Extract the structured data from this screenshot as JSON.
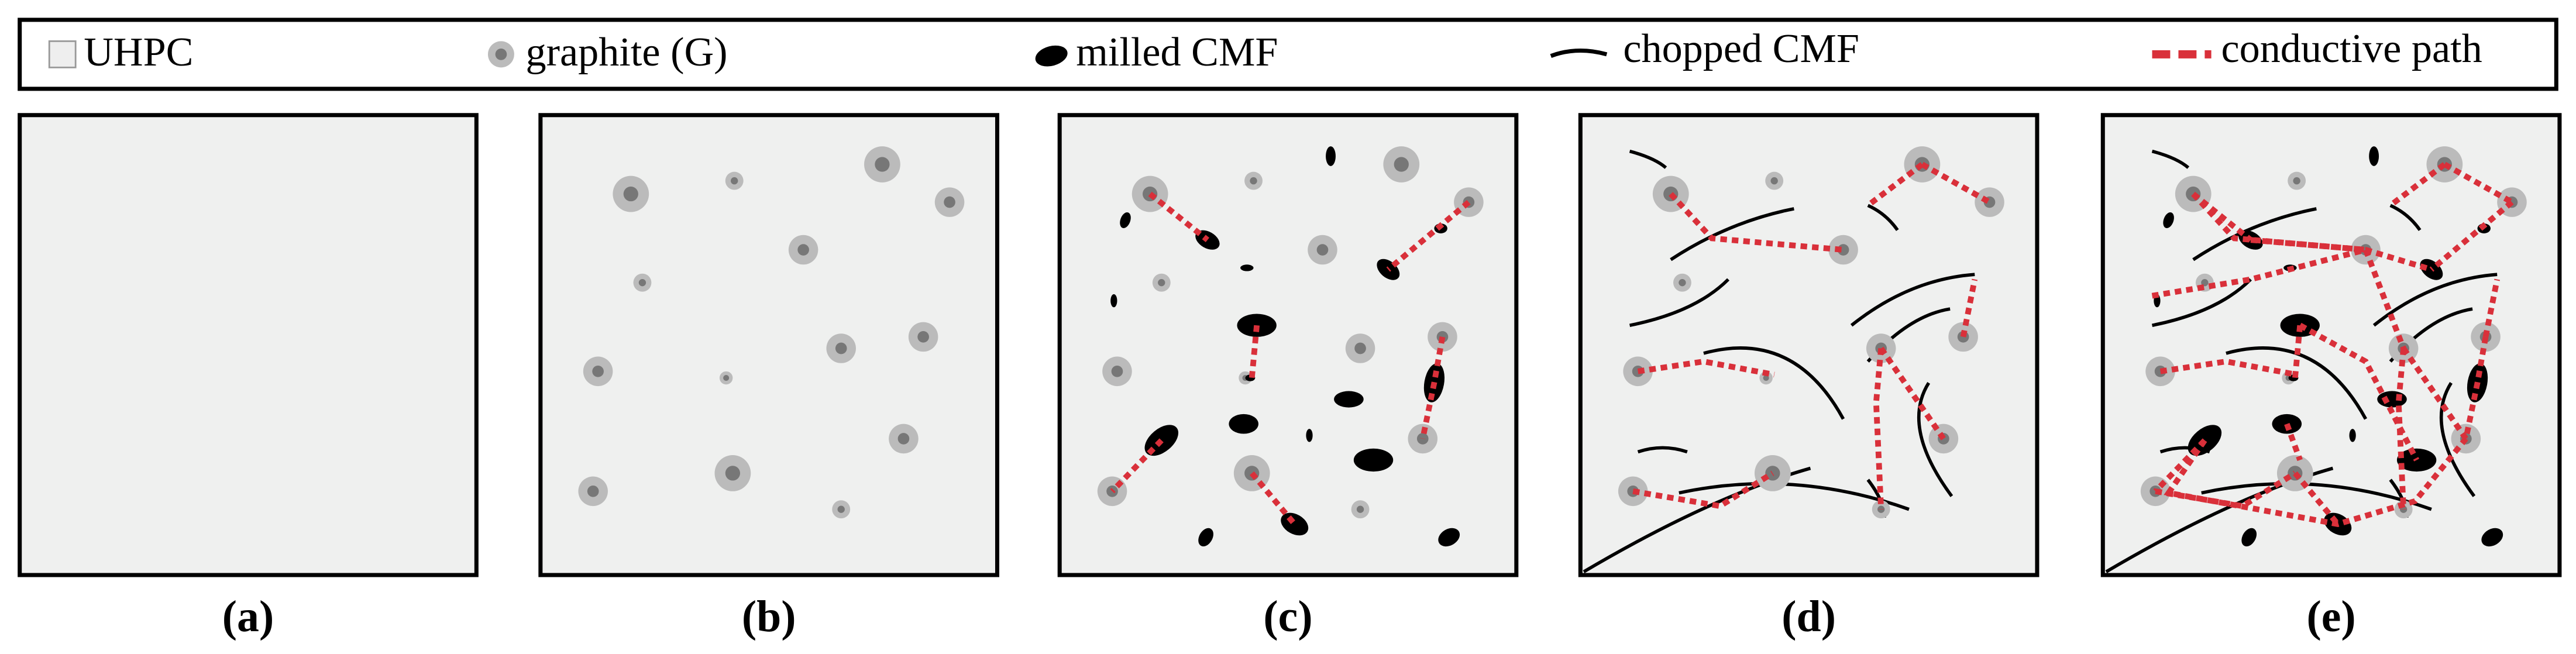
{
  "legend": {
    "items": [
      {
        "label": "UHPC"
      },
      {
        "label": "graphite (G)"
      },
      {
        "label": "milled CMF"
      },
      {
        "label": "chopped CMF"
      },
      {
        "label": "conductive path"
      }
    ]
  },
  "panels": [
    {
      "label": "(a)"
    },
    {
      "label": "(b)"
    },
    {
      "label": "(c)"
    },
    {
      "label": "(d)"
    },
    {
      "label": "(e)"
    }
  ]
}
